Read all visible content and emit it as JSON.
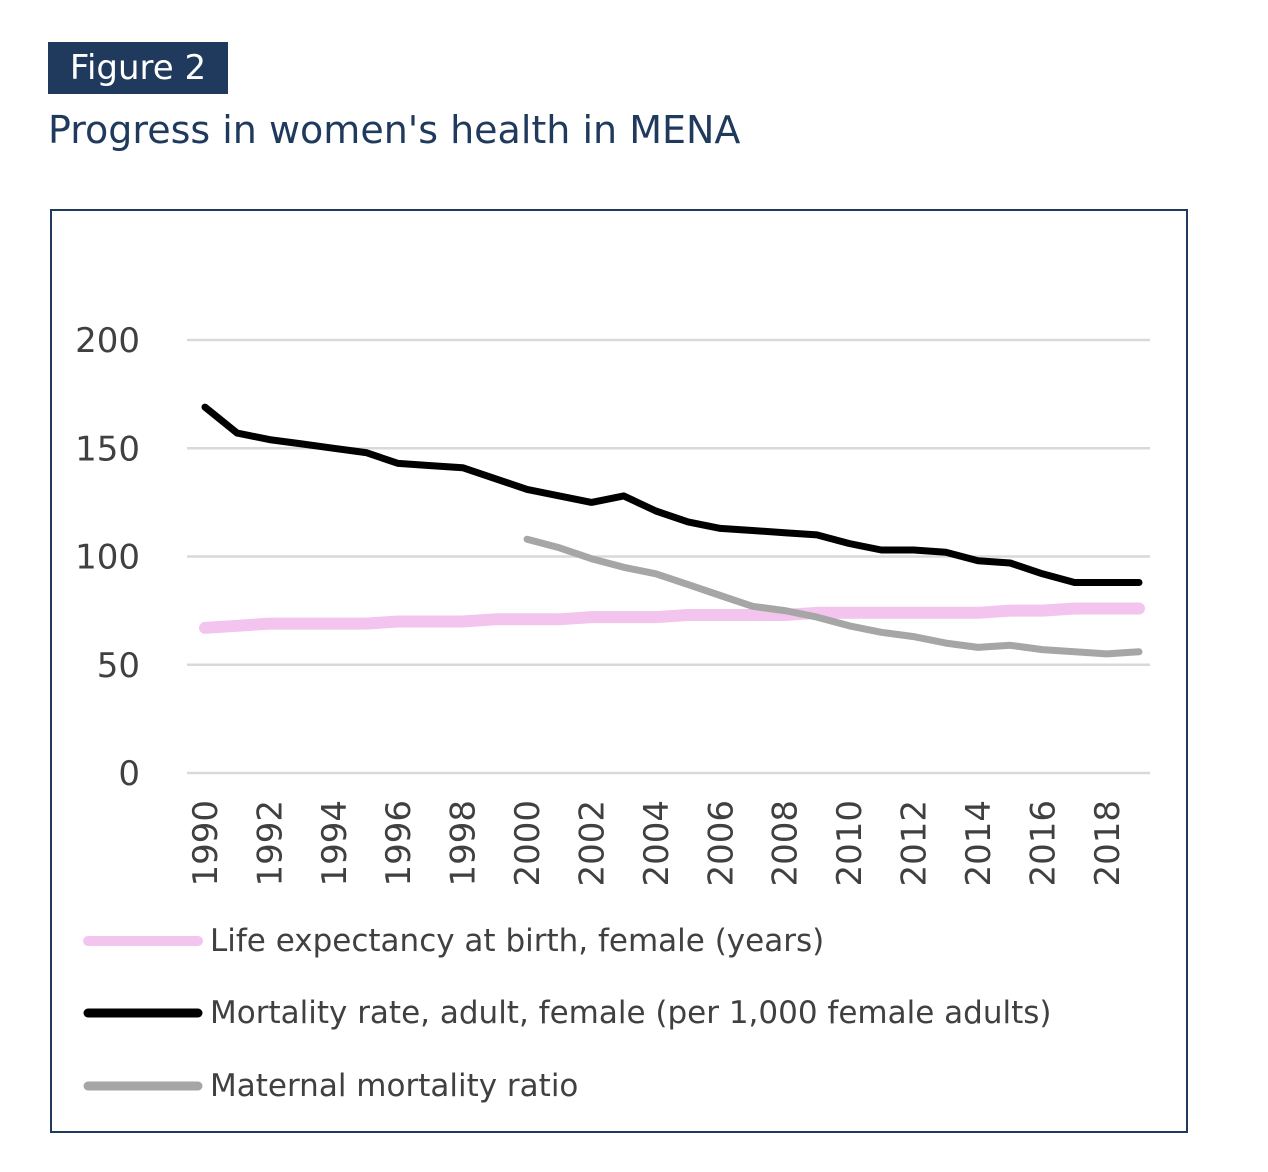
{
  "header": {
    "figure_label": "Figure 2",
    "title": "Progress in women's health in MENA"
  },
  "chart_data": {
    "type": "line",
    "title": "Progress in women's health in MENA",
    "xlabel": "",
    "ylabel": "",
    "ylim": [
      0,
      200
    ],
    "yticks": [
      "0",
      "50",
      "100",
      "150",
      "200"
    ],
    "grid": true,
    "legend_position": "bottom",
    "x": [
      1990,
      1991,
      1992,
      1993,
      1994,
      1995,
      1996,
      1997,
      1998,
      1999,
      2000,
      2001,
      2002,
      2003,
      2004,
      2005,
      2006,
      2007,
      2008,
      2009,
      2010,
      2011,
      2012,
      2013,
      2014,
      2015,
      2016,
      2017,
      2018,
      2019
    ],
    "xtick_labels": [
      "1990",
      "1992",
      "1994",
      "1996",
      "1998",
      "2000",
      "2002",
      "2004",
      "2006",
      "2008",
      "2010",
      "2012",
      "2014",
      "2016",
      "2018"
    ],
    "series": [
      {
        "name": "Life expectancy at birth, female (years)",
        "color": "#f2c4ee",
        "values": [
          67,
          68,
          69,
          69,
          69,
          69,
          70,
          70,
          70,
          71,
          71,
          71,
          72,
          72,
          72,
          73,
          73,
          73,
          73,
          74,
          74,
          74,
          74,
          74,
          74,
          75,
          75,
          76,
          76,
          76
        ]
      },
      {
        "name": "Mortality rate, adult, female (per 1,000 female adults)",
        "color": "#000000",
        "values": [
          169,
          157,
          154,
          152,
          150,
          148,
          143,
          142,
          141,
          136,
          131,
          128,
          125,
          128,
          121,
          116,
          113,
          112,
          111,
          110,
          106,
          103,
          103,
          102,
          98,
          97,
          92,
          88,
          88,
          88
        ]
      },
      {
        "name": "Maternal mortality ratio",
        "color": "#a6a6a6",
        "values": [
          null,
          null,
          null,
          null,
          null,
          null,
          null,
          null,
          null,
          null,
          108,
          104,
          99,
          95,
          92,
          87,
          82,
          77,
          75,
          72,
          68,
          65,
          63,
          60,
          58,
          59,
          57,
          56,
          55,
          56
        ]
      }
    ]
  }
}
